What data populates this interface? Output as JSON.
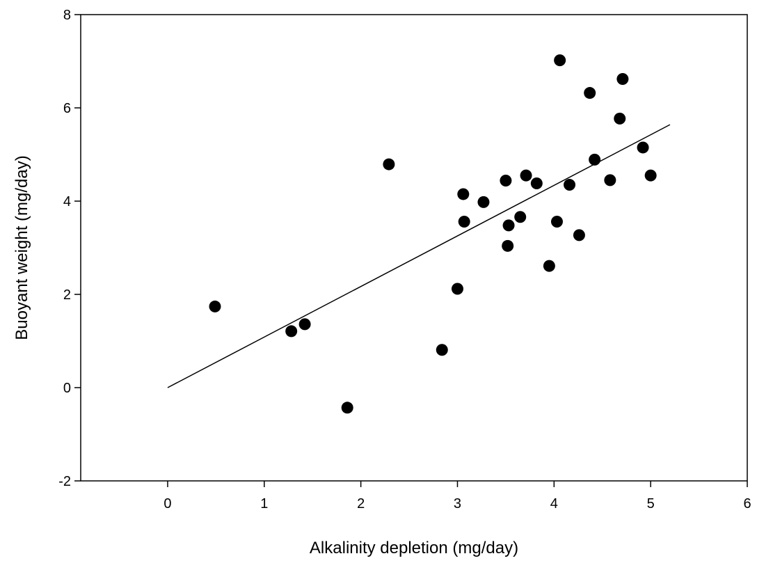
{
  "chart_data": {
    "type": "scatter",
    "title": "",
    "xlabel": "Alkalinity depletion (mg/day)",
    "ylabel": "Buoyant weight (mg/day)",
    "xlim": [
      -0.9,
      6
    ],
    "ylim": [
      -2,
      8
    ],
    "x_ticks": [
      0,
      1,
      2,
      3,
      4,
      5,
      6
    ],
    "y_ticks": [
      -2,
      0,
      2,
      4,
      6,
      8
    ],
    "grid": false,
    "legend": "none",
    "colors": {
      "points": "#000000",
      "line": "#000000",
      "axis": "#000000",
      "background": "#ffffff"
    },
    "points": [
      {
        "x": 0.49,
        "y": 1.74
      },
      {
        "x": 1.28,
        "y": 1.21
      },
      {
        "x": 1.42,
        "y": 1.36
      },
      {
        "x": 1.86,
        "y": -0.43
      },
      {
        "x": 2.29,
        "y": 4.79
      },
      {
        "x": 2.84,
        "y": 0.81
      },
      {
        "x": 3.0,
        "y": 2.12
      },
      {
        "x": 3.06,
        "y": 4.15
      },
      {
        "x": 3.07,
        "y": 3.56
      },
      {
        "x": 3.27,
        "y": 3.98
      },
      {
        "x": 3.5,
        "y": 4.44
      },
      {
        "x": 3.52,
        "y": 3.04
      },
      {
        "x": 3.53,
        "y": 3.48
      },
      {
        "x": 3.65,
        "y": 3.66
      },
      {
        "x": 3.71,
        "y": 4.55
      },
      {
        "x": 3.82,
        "y": 4.38
      },
      {
        "x": 3.95,
        "y": 2.61
      },
      {
        "x": 4.03,
        "y": 3.56
      },
      {
        "x": 4.06,
        "y": 7.02
      },
      {
        "x": 4.26,
        "y": 3.27
      },
      {
        "x": 4.16,
        "y": 4.35
      },
      {
        "x": 4.37,
        "y": 6.32
      },
      {
        "x": 4.42,
        "y": 4.89
      },
      {
        "x": 4.58,
        "y": 4.45
      },
      {
        "x": 4.68,
        "y": 5.77
      },
      {
        "x": 4.71,
        "y": 6.62
      },
      {
        "x": 4.92,
        "y": 5.15
      },
      {
        "x": 5.0,
        "y": 4.55
      }
    ],
    "fit_line": {
      "x": [
        0,
        5.2
      ],
      "y": [
        0,
        5.64
      ]
    }
  }
}
